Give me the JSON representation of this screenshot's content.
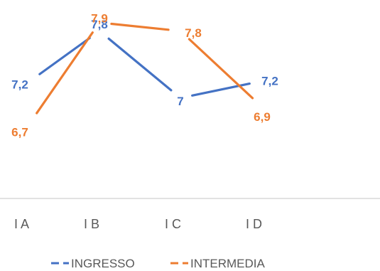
{
  "chart_data": {
    "type": "line",
    "categories": [
      "I A",
      "I B",
      "I C",
      "I D"
    ],
    "series": [
      {
        "name": "INGRESSO",
        "values": [
          7.2,
          7.8,
          7,
          7.2
        ],
        "labels": [
          "7,2",
          "7,8",
          "7",
          "7,2"
        ],
        "color": "#4472C4"
      },
      {
        "name": "INTERMEDIA",
        "values": [
          6.7,
          7.9,
          7.8,
          6.9
        ],
        "labels": [
          "6,7",
          "7,9",
          "7,8",
          "6,9"
        ],
        "color": "#ED7D31"
      }
    ],
    "title": "",
    "xlabel": "",
    "ylabel": "",
    "ylim": [
      5.8,
      8.0
    ],
    "grid": false,
    "legend": "bottom"
  }
}
